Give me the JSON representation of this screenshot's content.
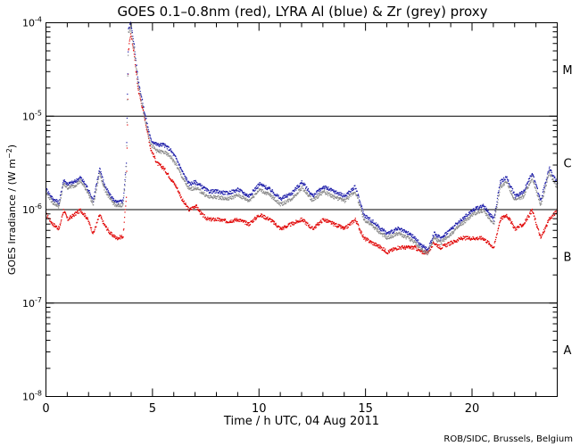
{
  "chart_data": {
    "type": "scatter",
    "title": "GOES 0.1–0.8nm (red), LYRA Al (blue) & Zr (grey) proxy",
    "xlabel": "Time / h UTC, 04 Aug 2011",
    "ylabel": "GOES Irradiance / (W m",
    "ylabel_sup": "−2",
    "ylabel_end": ")",
    "xlim": [
      0,
      24
    ],
    "ylim_log10": [
      -8,
      -4
    ],
    "yscale": "log",
    "x_ticks": [
      0,
      5,
      10,
      15,
      20
    ],
    "x_tick_labels": [
      "0",
      "5",
      "10",
      "15",
      "20"
    ],
    "y_ticks": [
      {
        "base": "10",
        "exp": "-8",
        "value": -8
      },
      {
        "base": "10",
        "exp": "-7",
        "value": -7
      },
      {
        "base": "10",
        "exp": "-6",
        "value": -6
      },
      {
        "base": "10",
        "exp": "-5",
        "value": -5
      },
      {
        "base": "10",
        "exp": "-4",
        "value": -4
      }
    ],
    "class_lines": [
      -7,
      -6,
      -5
    ],
    "class_labels": [
      {
        "label": "A",
        "log_center": -7.5
      },
      {
        "label": "B",
        "log_center": -6.5
      },
      {
        "label": "C",
        "log_center": -5.5
      },
      {
        "label": "M",
        "log_center": -4.5
      }
    ],
    "series": [
      {
        "name": "GOES 0.1–0.8nm",
        "color": "#e00000",
        "x": [
          0,
          0.3,
          0.6,
          0.8,
          1.0,
          1.3,
          1.6,
          1.9,
          2.2,
          2.5,
          2.7,
          3.0,
          3.3,
          3.6,
          3.75,
          3.85,
          3.95,
          4.1,
          4.3,
          4.6,
          4.9,
          5.2,
          5.5,
          5.8,
          6.1,
          6.4,
          6.7,
          7.0,
          7.3,
          7.6,
          8.0,
          8.5,
          9.0,
          9.5,
          10.0,
          10.5,
          11.0,
          11.5,
          12.0,
          12.5,
          13.0,
          13.5,
          14.0,
          14.5,
          14.9,
          15.3,
          15.7,
          16.0,
          16.5,
          17.0,
          17.3,
          17.6,
          17.9,
          18.2,
          18.5,
          19.0,
          19.5,
          20.0,
          20.5,
          21.0,
          21.3,
          21.6,
          22.0,
          22.4,
          22.8,
          23.2,
          23.6,
          24.0
        ],
        "y": [
          -6.05,
          -6.15,
          -6.2,
          -6.0,
          -6.1,
          -6.05,
          -6.0,
          -6.08,
          -6.25,
          -6.05,
          -6.15,
          -6.25,
          -6.3,
          -6.28,
          -5.85,
          -4.3,
          -4.1,
          -4.3,
          -4.7,
          -5.0,
          -5.35,
          -5.5,
          -5.55,
          -5.65,
          -5.75,
          -5.9,
          -6.0,
          -5.95,
          -6.05,
          -6.1,
          -6.1,
          -6.12,
          -6.1,
          -6.15,
          -6.05,
          -6.1,
          -6.2,
          -6.15,
          -6.1,
          -6.2,
          -6.1,
          -6.15,
          -6.2,
          -6.1,
          -6.3,
          -6.35,
          -6.4,
          -6.45,
          -6.4,
          -6.4,
          -6.4,
          -6.45,
          -6.45,
          -6.35,
          -6.4,
          -6.35,
          -6.3,
          -6.3,
          -6.3,
          -6.4,
          -6.1,
          -6.05,
          -6.2,
          -6.15,
          -6.0,
          -6.3,
          -6.1,
          -6.0
        ]
      },
      {
        "name": "LYRA Al",
        "color": "#1a1aa8",
        "x": [
          0,
          0.3,
          0.6,
          0.8,
          1.0,
          1.3,
          1.6,
          1.9,
          2.2,
          2.5,
          2.7,
          3.0,
          3.3,
          3.6,
          3.75,
          3.85,
          3.95,
          4.1,
          4.3,
          4.6,
          4.9,
          5.2,
          5.5,
          5.8,
          6.1,
          6.4,
          6.7,
          7.0,
          7.3,
          7.6,
          8.0,
          8.5,
          9.0,
          9.5,
          10.0,
          10.5,
          11.0,
          11.5,
          12.0,
          12.5,
          13.0,
          13.5,
          14.0,
          14.5,
          14.9,
          15.3,
          15.7,
          16.0,
          16.5,
          17.0,
          17.3,
          17.6,
          17.9,
          18.2,
          18.5,
          19.0,
          19.5,
          20.0,
          20.5,
          21.0,
          21.3,
          21.6,
          22.0,
          22.4,
          22.8,
          23.2,
          23.6,
          24.0
        ],
        "y": [
          -5.78,
          -5.88,
          -5.92,
          -5.68,
          -5.72,
          -5.7,
          -5.65,
          -5.75,
          -5.9,
          -5.55,
          -5.72,
          -5.85,
          -5.92,
          -5.9,
          -5.5,
          -4.05,
          -4.0,
          -4.2,
          -4.6,
          -4.95,
          -5.25,
          -5.3,
          -5.3,
          -5.35,
          -5.45,
          -5.6,
          -5.72,
          -5.7,
          -5.75,
          -5.8,
          -5.8,
          -5.82,
          -5.78,
          -5.85,
          -5.72,
          -5.78,
          -5.88,
          -5.82,
          -5.7,
          -5.85,
          -5.75,
          -5.8,
          -5.85,
          -5.75,
          -6.05,
          -6.12,
          -6.2,
          -6.25,
          -6.2,
          -6.25,
          -6.3,
          -6.38,
          -6.42,
          -6.25,
          -6.3,
          -6.2,
          -6.1,
          -6.0,
          -5.95,
          -6.1,
          -5.7,
          -5.65,
          -5.85,
          -5.8,
          -5.6,
          -5.9,
          -5.55,
          -5.72
        ]
      },
      {
        "name": "Zr proxy",
        "color": "#888888",
        "x": [
          0,
          0.3,
          0.6,
          0.8,
          1.0,
          1.3,
          1.6,
          1.9,
          2.2,
          2.5,
          2.7,
          3.0,
          3.3,
          3.6,
          3.75,
          3.85,
          3.95,
          4.1,
          4.3,
          4.6,
          4.9,
          5.2,
          5.5,
          5.8,
          6.1,
          6.4,
          6.7,
          7.0,
          7.3,
          7.6,
          8.0,
          8.5,
          9.0,
          9.5,
          10.0,
          10.5,
          11.0,
          11.5,
          12.0,
          12.5,
          13.0,
          13.5,
          14.0,
          14.5,
          14.9,
          15.3,
          15.7,
          16.0,
          16.5,
          17.0,
          17.3,
          17.6,
          17.9,
          18.2,
          18.5,
          19.0,
          19.5,
          20.0,
          20.5,
          21.0,
          21.3,
          21.6,
          22.0,
          22.4,
          22.8,
          23.2,
          23.6,
          24.0
        ],
        "y": [
          -5.82,
          -5.92,
          -5.96,
          -5.72,
          -5.76,
          -5.74,
          -5.69,
          -5.79,
          -5.94,
          -5.6,
          -5.76,
          -5.89,
          -5.96,
          -5.94,
          -5.55,
          -4.1,
          -4.05,
          -4.25,
          -4.65,
          -5.0,
          -5.3,
          -5.37,
          -5.38,
          -5.42,
          -5.52,
          -5.66,
          -5.78,
          -5.76,
          -5.81,
          -5.86,
          -5.86,
          -5.88,
          -5.84,
          -5.9,
          -5.78,
          -5.84,
          -5.94,
          -5.88,
          -5.76,
          -5.9,
          -5.8,
          -5.86,
          -5.9,
          -5.8,
          -6.1,
          -6.17,
          -6.25,
          -6.3,
          -6.25,
          -6.3,
          -6.35,
          -6.42,
          -6.46,
          -6.3,
          -6.35,
          -6.25,
          -6.15,
          -6.05,
          -6.0,
          -6.15,
          -5.75,
          -5.7,
          -5.9,
          -5.85,
          -5.65,
          -5.95,
          -5.6,
          -5.77
        ]
      }
    ]
  },
  "footer": {
    "credit": "ROB/SIDC, Brussels, Belgium"
  }
}
